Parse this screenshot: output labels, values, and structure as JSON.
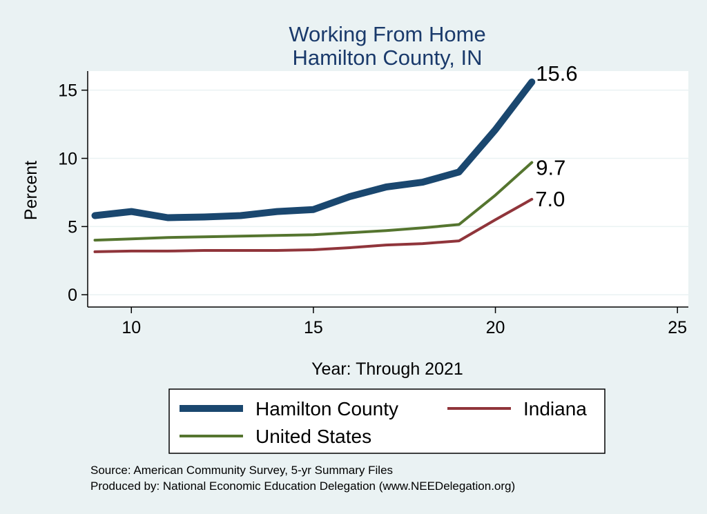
{
  "chart_data": {
    "type": "line",
    "title": "Working From Home",
    "subtitle": "Hamilton County, IN",
    "xlabel": "Year: Through 2021",
    "ylabel": "Percent",
    "xlim": [
      8.8,
      25.3
    ],
    "ylim": [
      -0.9,
      16.4
    ],
    "xticks": [
      10,
      15,
      20,
      25
    ],
    "yticks": [
      0,
      5,
      10,
      15
    ],
    "grid": true,
    "legend_position": "bottom",
    "series": [
      {
        "name": "Hamilton County",
        "color": "#1a476f",
        "x": [
          9,
          10,
          11,
          12,
          13,
          14,
          15,
          16,
          17,
          18,
          19,
          20,
          21
        ],
        "values": [
          5.8,
          6.1,
          5.65,
          5.7,
          5.8,
          6.1,
          6.25,
          7.2,
          7.9,
          8.25,
          9.0,
          12.1,
          15.6
        ],
        "end_label": "15.6"
      },
      {
        "name": "Indiana",
        "color": "#90353b",
        "x": [
          9,
          10,
          11,
          12,
          13,
          14,
          15,
          16,
          17,
          18,
          19,
          20,
          21
        ],
        "values": [
          3.15,
          3.2,
          3.2,
          3.25,
          3.25,
          3.25,
          3.3,
          3.45,
          3.65,
          3.75,
          3.95,
          5.5,
          7.0
        ],
        "end_label": "7.0"
      },
      {
        "name": "United States",
        "color": "#55752f",
        "x": [
          9,
          10,
          11,
          12,
          13,
          14,
          15,
          16,
          17,
          18,
          19,
          20,
          21
        ],
        "values": [
          4.0,
          4.1,
          4.2,
          4.25,
          4.3,
          4.35,
          4.4,
          4.55,
          4.7,
          4.9,
          5.15,
          7.3,
          9.7
        ],
        "end_label": "9.7"
      }
    ]
  },
  "notes": [
    "Source: American Community Survey, 5-yr Summary Files",
    "Produced by: National Economic Education Delegation (www.NEEDelegation.org)"
  ]
}
